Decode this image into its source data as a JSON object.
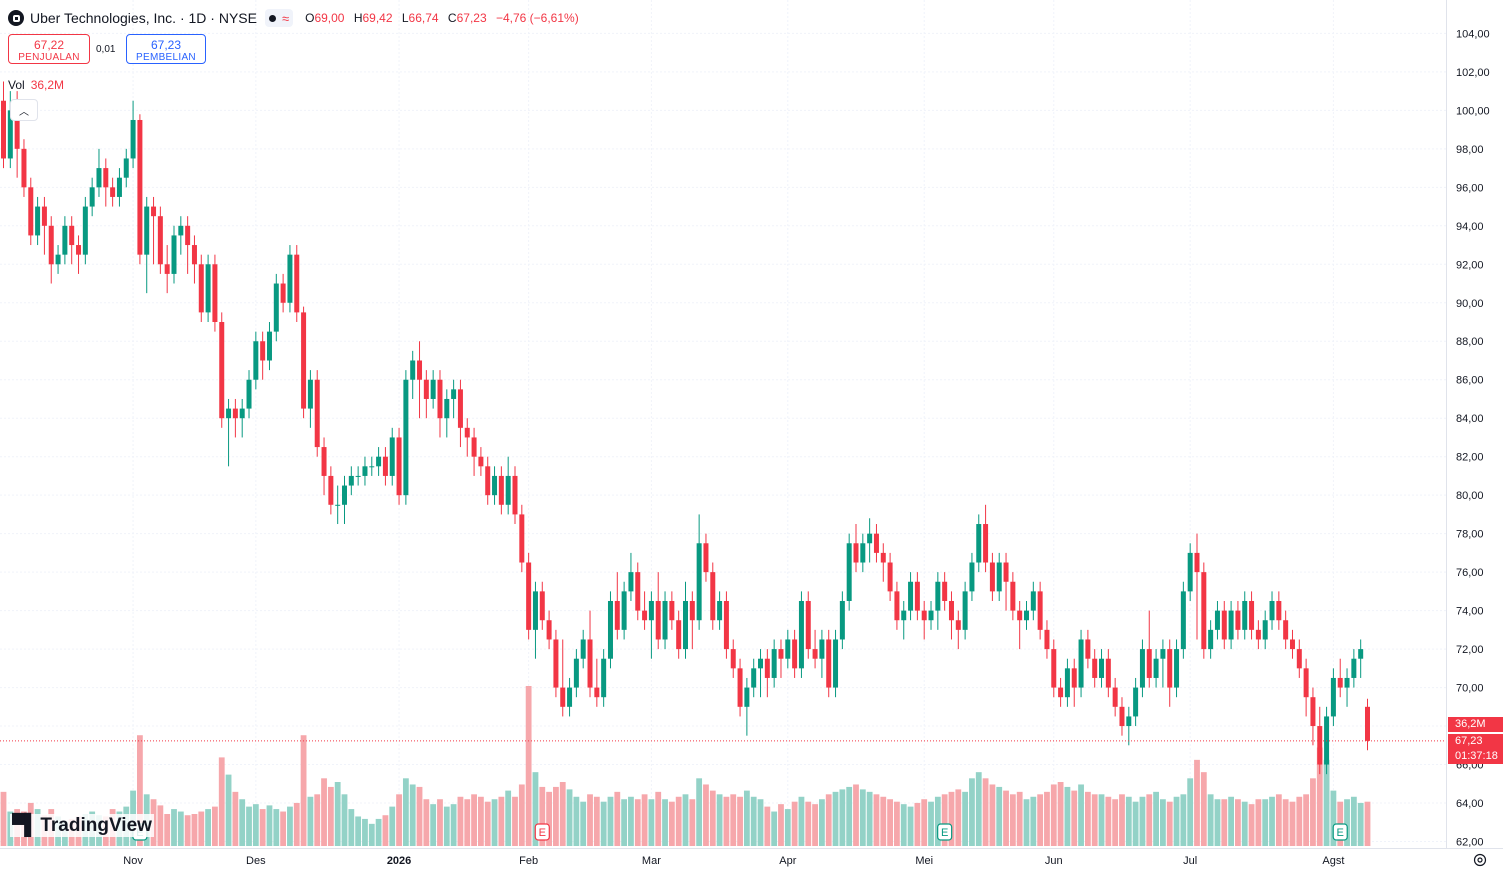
{
  "header": {
    "title": "Uber Technologies, Inc. · 1D · NYSE",
    "open_label": "O",
    "open": "69,00",
    "high_label": "H",
    "high": "69,42",
    "low_label": "L",
    "low": "66,74",
    "close_label": "C",
    "close": "67,23",
    "change": "−4,76 (−6,61%)",
    "market_icon": "market-closed-dot-icon",
    "wave_icon": "delayed-data-icon"
  },
  "trade": {
    "sell_price": "67,22",
    "sell_label": "PENJUALAN",
    "spread": "0,01",
    "buy_price": "67,23",
    "buy_label": "PEMBELIAN"
  },
  "volume": {
    "label": "Vol",
    "value": "36,2M"
  },
  "price_labels": {
    "volume": "36,2M",
    "price": "67,23",
    "countdown": "01:37:18"
  },
  "branding": {
    "logo_text": "TradingView"
  },
  "colors": {
    "up": "#089981",
    "down": "#f23645",
    "up_vol": "#93d2c7",
    "down_vol": "#f6a7ab"
  },
  "chart_data": {
    "type": "candlestick",
    "title": "Uber Technologies, Inc. · 1D · NYSE",
    "y_ticks": [
      "104,00",
      "102,00",
      "100,00",
      "98,00",
      "96,00",
      "94,00",
      "92,00",
      "90,00",
      "88,00",
      "86,00",
      "84,00",
      "82,00",
      "80,00",
      "78,00",
      "76,00",
      "74,00",
      "72,00",
      "70,00",
      "68,00",
      "66,00",
      "64,00",
      "62,00"
    ],
    "x_ticks": [
      {
        "label": "Nov",
        "bar": 19
      },
      {
        "label": "Des",
        "bar": 37
      },
      {
        "label": "2026",
        "bar": 58
      },
      {
        "label": "Feb",
        "bar": 77
      },
      {
        "label": "Mar",
        "bar": 95
      },
      {
        "label": "Apr",
        "bar": 115
      },
      {
        "label": "Mei",
        "bar": 135
      },
      {
        "label": "Jun",
        "bar": 154
      },
      {
        "label": "Jul",
        "bar": 174
      },
      {
        "label": "Agst",
        "bar": 195
      }
    ],
    "ylim": [
      61.8,
      104.8
    ],
    "grid": true,
    "earnings_markers": [
      {
        "bar": 20,
        "type": "up",
        "label": "E"
      },
      {
        "bar": 79,
        "type": "down",
        "label": "E"
      },
      {
        "bar": 138,
        "type": "up",
        "label": "E"
      },
      {
        "bar": 196,
        "type": "up",
        "label": "E"
      }
    ],
    "current_price": 67.23,
    "candles": [
      [
        100.5,
        97.5,
        101.5,
        97.0,
        44
      ],
      [
        97.5,
        100.0,
        101.0,
        97.0,
        28
      ],
      [
        100.0,
        98.0,
        101.0,
        96.5,
        30
      ],
      [
        98.0,
        96.0,
        98.5,
        95.5,
        28
      ],
      [
        96.0,
        93.5,
        96.5,
        93.0,
        35
      ],
      [
        93.5,
        95.0,
        95.5,
        93.0,
        30
      ],
      [
        95.0,
        94.0,
        95.5,
        92.5,
        25
      ],
      [
        94.0,
        92.0,
        94.5,
        91.0,
        30
      ],
      [
        92.0,
        92.5,
        93.0,
        91.5,
        24
      ],
      [
        92.5,
        94.0,
        94.5,
        92.0,
        20
      ],
      [
        94.0,
        93.0,
        94.5,
        92.0,
        22
      ],
      [
        93.0,
        92.5,
        93.5,
        91.5,
        24
      ],
      [
        92.5,
        95.0,
        95.5,
        92.0,
        26
      ],
      [
        95.0,
        96.0,
        96.5,
        94.5,
        28
      ],
      [
        96.0,
        97.0,
        98.0,
        95.5,
        25
      ],
      [
        97.0,
        96.0,
        97.5,
        95.0,
        24
      ],
      [
        96.0,
        95.5,
        96.5,
        95.0,
        30
      ],
      [
        95.5,
        96.5,
        97.0,
        95.0,
        28
      ],
      [
        96.5,
        97.5,
        98.0,
        96.0,
        32
      ],
      [
        97.5,
        99.5,
        100.5,
        97.0,
        45
      ],
      [
        99.5,
        92.5,
        99.8,
        92.0,
        90
      ],
      [
        92.5,
        95.0,
        95.5,
        90.5,
        42
      ],
      [
        95.0,
        94.5,
        95.5,
        92.0,
        38
      ],
      [
        94.5,
        92.0,
        95.0,
        91.5,
        33
      ],
      [
        92.0,
        91.5,
        93.0,
        90.5,
        26
      ],
      [
        91.5,
        93.5,
        94.0,
        91.0,
        30
      ],
      [
        93.5,
        94.0,
        94.5,
        92.5,
        28
      ],
      [
        94.0,
        93.0,
        94.5,
        91.5,
        25
      ],
      [
        93.0,
        92.0,
        93.5,
        91.0,
        26
      ],
      [
        92.0,
        89.5,
        92.5,
        89.0,
        28
      ],
      [
        89.5,
        92.0,
        92.5,
        89.0,
        30
      ],
      [
        92.0,
        89.0,
        92.5,
        88.5,
        32
      ],
      [
        89.0,
        84.0,
        89.5,
        83.5,
        72
      ],
      [
        84.0,
        84.5,
        85.0,
        81.5,
        58
      ],
      [
        84.5,
        84.0,
        85.0,
        83.0,
        44
      ],
      [
        84.0,
        84.5,
        85.0,
        83.0,
        38
      ],
      [
        84.5,
        86.0,
        86.5,
        84.0,
        32
      ],
      [
        86.0,
        88.0,
        88.5,
        85.5,
        34
      ],
      [
        88.0,
        87.0,
        88.5,
        86.0,
        30
      ],
      [
        87.0,
        88.5,
        89.0,
        86.5,
        33
      ],
      [
        88.5,
        91.0,
        91.5,
        88.0,
        30
      ],
      [
        91.0,
        90.0,
        91.5,
        89.5,
        28
      ],
      [
        90.0,
        92.5,
        93.0,
        89.5,
        32
      ],
      [
        92.5,
        89.5,
        93.0,
        89.0,
        35
      ],
      [
        89.5,
        84.5,
        89.8,
        84.0,
        90
      ],
      [
        84.5,
        86.0,
        86.5,
        83.5,
        40
      ],
      [
        86.0,
        82.5,
        86.5,
        82.0,
        42
      ],
      [
        82.5,
        81.0,
        83.0,
        80.0,
        55
      ],
      [
        81.0,
        79.5,
        81.5,
        79.0,
        48
      ],
      [
        79.5,
        79.5,
        80.5,
        78.5,
        52
      ],
      [
        79.5,
        80.5,
        81.0,
        78.5,
        42
      ],
      [
        80.5,
        81.0,
        81.5,
        80.0,
        30
      ],
      [
        81.0,
        81.0,
        81.5,
        80.5,
        24
      ],
      [
        81.0,
        81.5,
        82.0,
        80.5,
        22
      ],
      [
        81.5,
        81.5,
        82.0,
        81.0,
        18
      ],
      [
        81.5,
        82.0,
        82.5,
        81.0,
        22
      ],
      [
        82.0,
        81.0,
        82.5,
        80.5,
        25
      ],
      [
        81.0,
        83.0,
        83.5,
        80.5,
        32
      ],
      [
        83.0,
        80.0,
        83.5,
        79.5,
        42
      ],
      [
        80.0,
        86.0,
        86.5,
        79.5,
        55
      ],
      [
        86.0,
        87.0,
        87.5,
        85.0,
        50
      ],
      [
        87.0,
        86.0,
        88.0,
        84.0,
        48
      ],
      [
        86.0,
        85.0,
        86.5,
        84.0,
        38
      ],
      [
        85.0,
        86.0,
        86.5,
        84.5,
        34
      ],
      [
        86.0,
        84.0,
        86.5,
        83.0,
        38
      ],
      [
        84.0,
        85.0,
        85.5,
        83.0,
        32
      ],
      [
        85.0,
        85.5,
        86.0,
        84.0,
        34
      ],
      [
        85.5,
        83.5,
        86.0,
        82.5,
        40
      ],
      [
        83.5,
        83.0,
        84.0,
        82.0,
        38
      ],
      [
        83.0,
        82.0,
        83.5,
        81.0,
        42
      ],
      [
        82.0,
        81.5,
        82.5,
        81.0,
        40
      ],
      [
        81.5,
        80.0,
        82.0,
        79.5,
        36
      ],
      [
        80.0,
        81.0,
        81.5,
        79.5,
        38
      ],
      [
        81.0,
        79.5,
        81.5,
        79.0,
        40
      ],
      [
        79.5,
        81.0,
        82.0,
        79.0,
        45
      ],
      [
        81.0,
        79.0,
        81.5,
        78.5,
        40
      ],
      [
        79.0,
        76.5,
        79.5,
        76.0,
        50
      ],
      [
        76.5,
        73.0,
        77.0,
        72.5,
        130
      ],
      [
        73.0,
        75.0,
        75.5,
        71.5,
        60
      ],
      [
        75.0,
        73.5,
        75.5,
        73.0,
        48
      ],
      [
        73.5,
        72.5,
        74.0,
        72.0,
        44
      ],
      [
        72.5,
        70.0,
        73.0,
        69.5,
        48
      ],
      [
        70.0,
        69.0,
        72.5,
        68.5,
        52
      ],
      [
        69.0,
        70.0,
        70.5,
        68.5,
        46
      ],
      [
        70.0,
        71.5,
        72.0,
        69.5,
        40
      ],
      [
        71.5,
        72.5,
        73.0,
        71.0,
        36
      ],
      [
        72.5,
        70.0,
        74.0,
        69.5,
        42
      ],
      [
        70.0,
        69.5,
        71.5,
        69.0,
        40
      ],
      [
        69.5,
        71.5,
        72.0,
        69.0,
        36
      ],
      [
        71.5,
        74.5,
        75.0,
        71.0,
        40
      ],
      [
        74.5,
        73.0,
        76.0,
        72.5,
        44
      ],
      [
        73.0,
        75.0,
        75.5,
        72.5,
        38
      ],
      [
        75.0,
        76.0,
        77.0,
        74.5,
        40
      ],
      [
        76.0,
        74.0,
        76.5,
        73.5,
        38
      ],
      [
        74.0,
        73.5,
        75.0,
        73.0,
        42
      ],
      [
        73.5,
        74.5,
        75.0,
        71.5,
        38
      ],
      [
        74.5,
        72.5,
        76.0,
        72.0,
        44
      ],
      [
        72.5,
        74.5,
        75.0,
        72.0,
        38
      ],
      [
        74.5,
        73.5,
        75.0,
        73.0,
        36
      ],
      [
        73.5,
        72.0,
        74.0,
        71.5,
        40
      ],
      [
        72.0,
        74.5,
        75.5,
        71.5,
        42
      ],
      [
        74.5,
        73.5,
        75.0,
        72.0,
        38
      ],
      [
        73.5,
        77.5,
        79.0,
        73.0,
        55
      ],
      [
        77.5,
        76.0,
        78.0,
        75.5,
        50
      ],
      [
        76.0,
        73.5,
        76.5,
        73.0,
        45
      ],
      [
        73.5,
        74.5,
        75.0,
        73.0,
        42
      ],
      [
        74.5,
        72.0,
        75.0,
        71.5,
        40
      ],
      [
        72.0,
        71.0,
        72.5,
        70.5,
        42
      ],
      [
        71.0,
        69.0,
        71.5,
        68.5,
        40
      ],
      [
        69.0,
        70.0,
        70.5,
        67.5,
        45
      ],
      [
        70.0,
        71.0,
        71.5,
        69.5,
        40
      ],
      [
        71.0,
        71.5,
        72.0,
        69.5,
        38
      ],
      [
        71.5,
        70.5,
        72.0,
        69.5,
        32
      ],
      [
        70.5,
        72.0,
        72.5,
        70.0,
        28
      ],
      [
        72.0,
        71.5,
        72.5,
        70.5,
        34
      ],
      [
        71.5,
        72.5,
        73.0,
        71.0,
        30
      ],
      [
        72.5,
        71.0,
        73.0,
        70.5,
        36
      ],
      [
        71.0,
        74.5,
        75.0,
        70.5,
        40
      ],
      [
        74.5,
        72.0,
        75.0,
        71.5,
        36
      ],
      [
        72.0,
        71.5,
        73.0,
        71.0,
        34
      ],
      [
        71.5,
        72.5,
        73.0,
        70.5,
        38
      ],
      [
        72.5,
        70.0,
        73.0,
        69.5,
        42
      ],
      [
        70.0,
        72.5,
        73.0,
        69.5,
        44
      ],
      [
        72.5,
        74.5,
        75.0,
        72.0,
        46
      ],
      [
        74.5,
        77.5,
        78.0,
        74.0,
        48
      ],
      [
        77.5,
        76.5,
        78.5,
        76.0,
        50
      ],
      [
        76.5,
        77.5,
        78.0,
        76.0,
        46
      ],
      [
        77.5,
        78.0,
        78.8,
        76.5,
        44
      ],
      [
        78.0,
        77.0,
        78.5,
        76.5,
        42
      ],
      [
        77.0,
        76.5,
        77.5,
        75.5,
        40
      ],
      [
        76.5,
        75.0,
        77.0,
        74.5,
        38
      ],
      [
        75.0,
        73.5,
        75.5,
        73.0,
        36
      ],
      [
        73.5,
        74.0,
        74.5,
        72.5,
        34
      ],
      [
        74.0,
        75.5,
        76.0,
        73.5,
        32
      ],
      [
        75.5,
        74.0,
        76.0,
        73.5,
        35
      ],
      [
        74.0,
        73.5,
        74.5,
        72.5,
        38
      ],
      [
        73.5,
        74.0,
        74.5,
        73.0,
        36
      ],
      [
        74.0,
        75.5,
        76.0,
        73.0,
        40
      ],
      [
        75.5,
        74.5,
        76.0,
        74.0,
        42
      ],
      [
        74.5,
        73.5,
        75.0,
        72.5,
        44
      ],
      [
        73.5,
        73.0,
        74.0,
        72.0,
        46
      ],
      [
        73.0,
        75.0,
        75.5,
        72.5,
        44
      ],
      [
        75.0,
        76.5,
        77.0,
        74.5,
        55
      ],
      [
        76.5,
        78.5,
        79.0,
        76.0,
        60
      ],
      [
        78.5,
        76.5,
        79.5,
        76.0,
        55
      ],
      [
        76.5,
        75.0,
        77.0,
        74.5,
        50
      ],
      [
        75.0,
        76.5,
        77.0,
        74.5,
        48
      ],
      [
        76.5,
        75.5,
        77.0,
        74.0,
        45
      ],
      [
        75.5,
        74.0,
        76.0,
        73.5,
        42
      ],
      [
        74.0,
        73.5,
        74.5,
        72.0,
        44
      ],
      [
        73.5,
        74.0,
        74.5,
        73.0,
        38
      ],
      [
        74.0,
        75.0,
        75.5,
        73.5,
        40
      ],
      [
        75.0,
        73.0,
        75.5,
        72.5,
        42
      ],
      [
        73.0,
        72.0,
        73.5,
        71.5,
        44
      ],
      [
        72.0,
        70.0,
        72.5,
        69.5,
        50
      ],
      [
        70.0,
        69.5,
        70.5,
        69.0,
        52
      ],
      [
        69.5,
        71.0,
        71.5,
        69.0,
        48
      ],
      [
        71.0,
        70.0,
        71.5,
        69.0,
        45
      ],
      [
        70.0,
        72.5,
        73.0,
        69.5,
        50
      ],
      [
        72.5,
        71.5,
        73.0,
        71.0,
        44
      ],
      [
        71.5,
        70.5,
        72.0,
        70.0,
        42
      ],
      [
        70.5,
        71.5,
        72.0,
        70.0
      ],
      [
        71.5,
        70.0,
        72.0,
        69.5,
        40
      ],
      [
        70.0,
        69.0,
        70.5,
        68.5,
        38
      ],
      [
        69.0,
        68.0,
        69.5,
        67.5,
        42
      ],
      [
        68.0,
        68.5,
        69.0,
        67.0,
        40
      ],
      [
        68.5,
        70.0,
        70.5,
        68.0,
        36
      ],
      [
        70.0,
        72.0,
        72.5,
        69.5,
        40
      ],
      [
        72.0,
        70.5,
        74.0,
        70.0,
        42
      ],
      [
        70.5,
        71.5,
        72.0,
        70.0,
        44
      ],
      [
        71.5,
        72.0,
        72.5,
        70.0,
        38
      ],
      [
        72.0,
        70.0,
        72.5,
        69.0,
        36
      ],
      [
        70.0,
        72.0,
        72.5,
        69.5,
        40
      ],
      [
        72.0,
        75.0,
        75.5,
        71.5,
        42
      ],
      [
        75.0,
        77.0,
        77.5,
        74.5,
        55
      ],
      [
        77.0,
        76.0,
        78.0,
        72.5,
        70
      ],
      [
        76.0,
        72.0,
        76.5,
        71.5,
        60
      ],
      [
        72.0,
        73.0,
        73.5,
        71.5,
        42
      ],
      [
        73.0,
        74.0,
        74.5,
        72.5,
        38
      ],
      [
        74.0,
        72.5,
        74.5,
        72.0
      ],
      [
        72.5,
        74.0,
        74.5,
        72.0,
        40
      ],
      [
        74.0,
        73.0,
        74.5,
        72.5,
        38
      ],
      [
        73.0,
        74.5,
        75.0,
        72.5,
        36
      ],
      [
        74.5,
        73.0,
        75.0,
        72.5,
        34
      ],
      [
        73.0,
        72.5,
        73.5,
        72.0,
        38
      ],
      [
        72.5,
        73.5,
        74.0,
        72.0
      ],
      [
        73.5,
        74.5,
        75.0,
        73.0,
        40
      ],
      [
        74.5,
        73.5,
        75.0,
        73.0,
        42
      ],
      [
        73.5,
        72.5,
        74.0,
        72.0,
        38
      ],
      [
        72.5,
        72.0,
        73.0,
        71.5,
        36
      ],
      [
        72.0,
        71.0,
        72.5,
        70.5,
        40
      ],
      [
        71.0,
        69.5,
        71.5,
        68.5,
        42
      ],
      [
        69.5,
        68.0,
        70.0,
        67.0,
        55
      ],
      [
        68.0,
        66.0,
        69.0,
        65.5,
        80
      ],
      [
        66.0,
        68.5,
        69.0,
        65.5,
        70
      ],
      [
        68.5,
        70.5,
        71.0,
        68.0,
        45
      ],
      [
        70.5,
        70.0,
        71.5,
        69.5,
        36
      ],
      [
        70.0,
        70.5,
        71.0,
        69.0,
        38
      ],
      [
        70.5,
        71.5,
        72.0,
        70.0,
        40
      ],
      [
        71.5,
        72.0,
        72.5,
        70.5,
        35
      ],
      [
        69.0,
        67.23,
        69.42,
        66.74,
        36
      ]
    ]
  }
}
